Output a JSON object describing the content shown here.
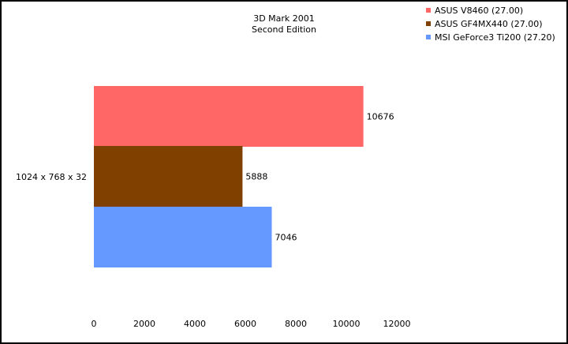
{
  "chart_data": {
    "type": "bar",
    "orientation": "horizontal",
    "title": "3D Mark 2001",
    "subtitle": "Second Edition",
    "categories": [
      "1024 x 768 x 32"
    ],
    "series": [
      {
        "name": "ASUS V8460 (27.00)",
        "color": "#ff6666",
        "values": [
          10676
        ]
      },
      {
        "name": "ASUS GF4MX440 (27.00)",
        "color": "#7f4000",
        "values": [
          5888
        ]
      },
      {
        "name": "MSI GeForce3 Ti200 (27.20)",
        "color": "#6699ff",
        "values": [
          7046
        ]
      }
    ],
    "xlim": [
      0,
      12000
    ],
    "xticks": [
      0,
      2000,
      4000,
      6000,
      8000,
      10000,
      12000
    ],
    "xlabel": "",
    "ylabel": "",
    "grid": false,
    "legend_position": "top-right"
  }
}
